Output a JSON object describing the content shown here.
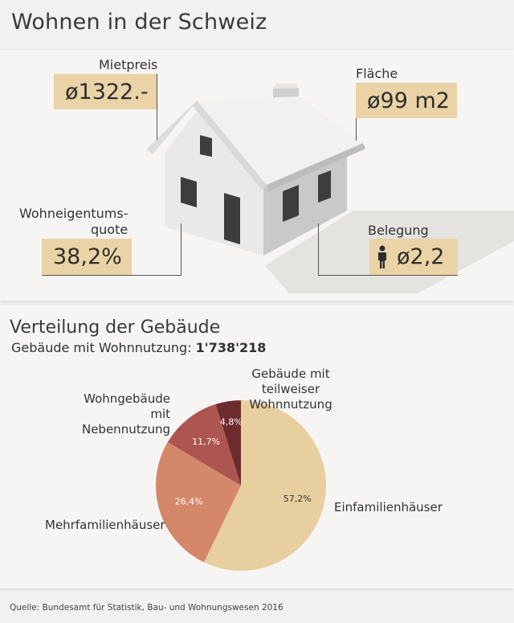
{
  "header": {
    "title": "Wohnen in der Schweiz"
  },
  "facts": {
    "rent": {
      "label": "Mietpreis",
      "value": "ø1322.-"
    },
    "area": {
      "label": "Fläche",
      "value": "ø99 m2"
    },
    "ownership": {
      "label_line1": "Wohneigentums-",
      "label_line2": "quote",
      "value": "38,2%"
    },
    "occupancy": {
      "label": "Belegung",
      "value": "ø2,2",
      "icon": "person-icon"
    }
  },
  "chart_data": {
    "type": "pie",
    "title": "Verteilung der Gebäude",
    "subtitle_label": "Gebäude mit Wohnnutzung:",
    "subtitle_value": "1'738'218",
    "slices": [
      {
        "name": "Einfamilienhäuser",
        "value": 57.2,
        "value_label": "57,2%",
        "color": "#e8cfa0"
      },
      {
        "name": "Mehrfamilienhäuser",
        "value": 26.4,
        "value_label": "26,4%",
        "color": "#d5876a"
      },
      {
        "name_line1": "Wohngebäude mit",
        "name_line2": "Nebennutzung",
        "value": 11.7,
        "value_label": "11,7%",
        "color": "#ad5550"
      },
      {
        "name_line1": "Gebäude mit teilweiser",
        "name_line2": "Wohnnutzung",
        "value": 4.8,
        "value_label": "4,8%",
        "color": "#6e2b2d"
      }
    ]
  },
  "footer": {
    "source": "Quelle: Bundesamt für Statistik, Bau- und Wohnungswesen 2016"
  }
}
